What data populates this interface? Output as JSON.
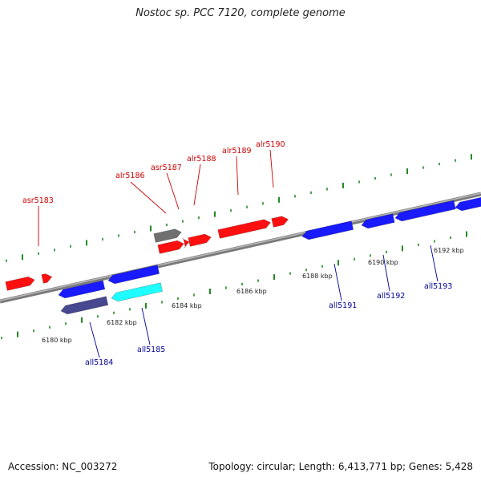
{
  "title": "Nostoc sp. PCC 7120, complete genome",
  "footer": {
    "accession": "Accession: NC_003272",
    "summary": "Topology: circular; Length: 6,413,771 bp; Genes: 5,428"
  },
  "colors": {
    "forward_gene": "#ff1010",
    "reverse_gene": "#1a1aff",
    "pseudo_gene": "#707070",
    "reverse_alt_dark": "#484890",
    "reverse_alt_cyan": "#20ffff",
    "forward_label": "#cc0000",
    "reverse_label": "#000099",
    "tick": "#228b22",
    "backbone": "#808080"
  },
  "tick_labels": [
    "6180 kbp",
    "6182 kbp",
    "6184 kbp",
    "6186 kbp",
    "6188 kbp",
    "6190 kbp",
    "6192 kbp"
  ],
  "gene_labels": [
    {
      "name": "asr5183",
      "strand": "forward"
    },
    {
      "name": "alr5186",
      "strand": "forward"
    },
    {
      "name": "asr5187",
      "strand": "forward"
    },
    {
      "name": "alr5188",
      "strand": "forward"
    },
    {
      "name": "alr5189",
      "strand": "forward"
    },
    {
      "name": "alr5190",
      "strand": "forward"
    },
    {
      "name": "all5184",
      "strand": "reverse"
    },
    {
      "name": "all5185",
      "strand": "reverse"
    },
    {
      "name": "all5191",
      "strand": "reverse"
    },
    {
      "name": "all5192",
      "strand": "reverse"
    },
    {
      "name": "all5193",
      "strand": "reverse"
    }
  ]
}
